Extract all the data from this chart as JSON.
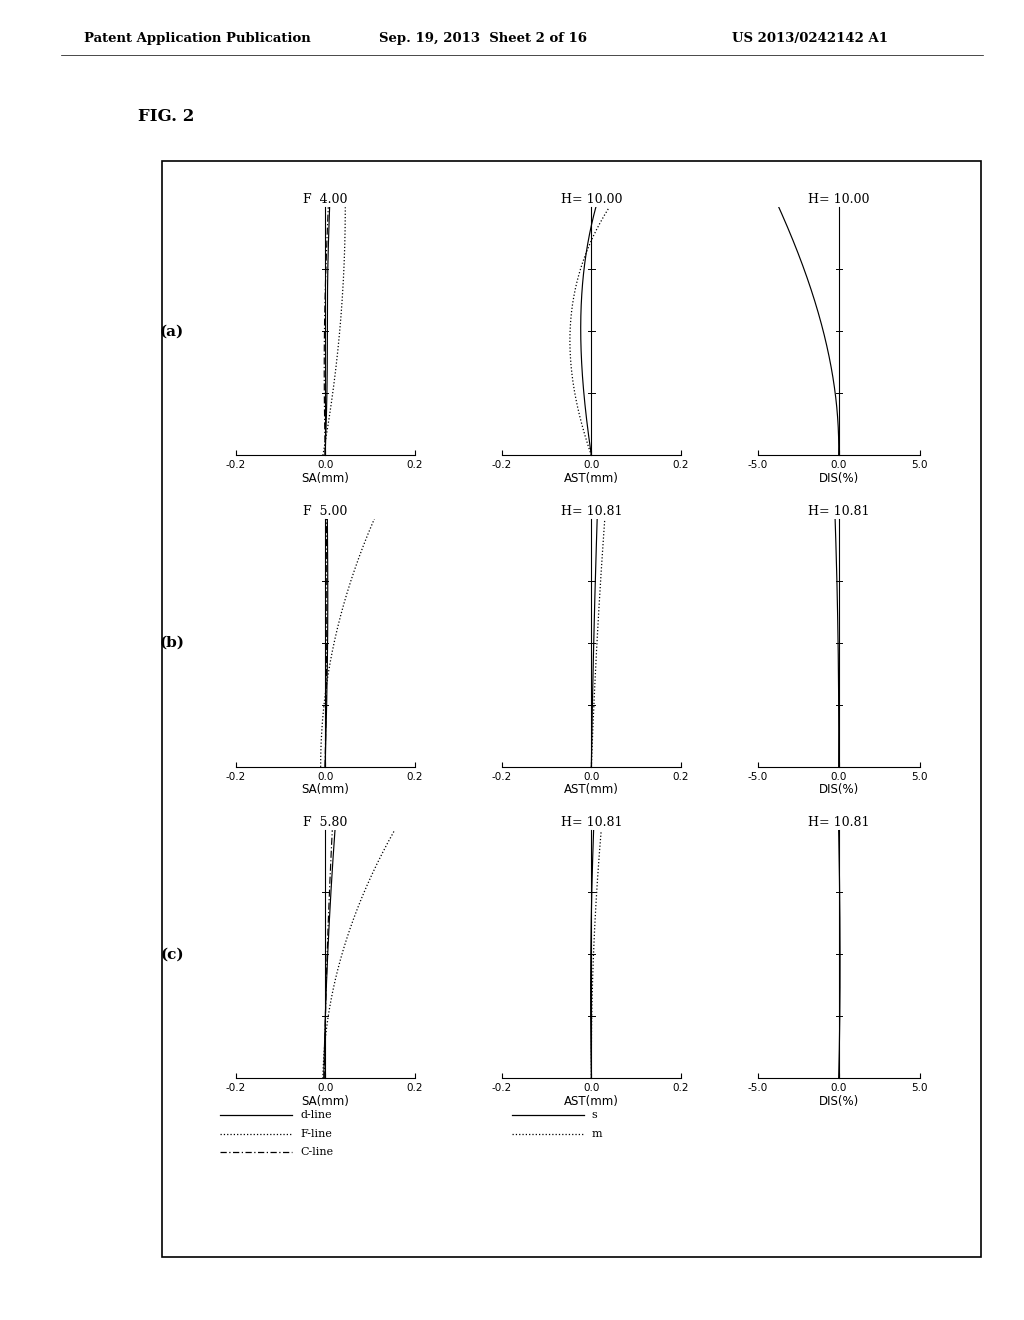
{
  "fig_label": "FIG. 2",
  "header_left": "Patent Application Publication",
  "header_center": "Sep. 19, 2013  Sheet 2 of 16",
  "header_right": "US 2013/0242142 A1",
  "rows": [
    {
      "label": "(a)",
      "sa_title": "F  4.00",
      "ast_title": "H= 10.00",
      "dis_title": "H= 10.00"
    },
    {
      "label": "(b)",
      "sa_title": "F  5.00",
      "ast_title": "H= 10.81",
      "dis_title": "H= 10.81"
    },
    {
      "label": "(c)",
      "sa_title": "F  5.80",
      "ast_title": "H= 10.81",
      "dis_title": "H= 10.81"
    }
  ],
  "sa_xlim": [
    -0.2,
    0.2
  ],
  "ast_xlim": [
    -0.2,
    0.2
  ],
  "dis_xlim": [
    -5.0,
    5.0
  ],
  "sa_xticks": [
    -0.2,
    0.0,
    0.2
  ],
  "ast_xticks": [
    -0.2,
    0.0,
    0.2
  ],
  "dis_xticks": [
    -5.0,
    0.0,
    5.0
  ],
  "sa_xticklabels": [
    "-0.2",
    "0.0",
    "0.2"
  ],
  "ast_xticklabels": [
    "-0.2",
    "0.0",
    "0.2"
  ],
  "dis_xticklabels": [
    "-5.0",
    "0.0",
    "5.0"
  ],
  "sa_xlabel": "SA(mm)",
  "ast_xlabel": "AST(mm)",
  "dis_xlabel": "DIS(%)",
  "background": "#ffffff",
  "line_color": "#000000",
  "ytick_positions": [
    0.25,
    0.5,
    0.75
  ]
}
